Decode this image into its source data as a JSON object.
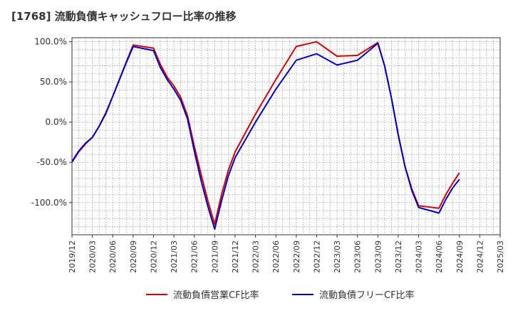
{
  "chart_data": {
    "type": "line",
    "title": "[1768]  流動負債キャッシュフロー比率の推移",
    "xlabel": "",
    "ylabel": "",
    "ylim": [
      -140,
      105
    ],
    "yticks": [
      {
        "value": 100,
        "label": "100.0%"
      },
      {
        "value": 50,
        "label": "50.0%"
      },
      {
        "value": 0,
        "label": "0.0%"
      },
      {
        "value": -50,
        "label": "-50.0%"
      },
      {
        "value": -100,
        "label": "-100.0%"
      }
    ],
    "xlim": [
      "2019/12",
      "2025/03"
    ],
    "x_tick_labels": [
      "2019/12",
      "2020/03",
      "2020/06",
      "2020/09",
      "2020/12",
      "2021/03",
      "2021/06",
      "2021/09",
      "2021/12",
      "2022/03",
      "2022/06",
      "2022/09",
      "2022/12",
      "2023/03",
      "2023/06",
      "2023/09",
      "2023/12",
      "2024/03",
      "2024/06",
      "2024/09",
      "2024/12",
      "2025/03"
    ],
    "grid": true,
    "legend_position": "bottom",
    "series": [
      {
        "name": "流動負債営業CF比率",
        "color": "#dd0000",
        "points": [
          {
            "x": "2019/12",
            "y": -50
          },
          {
            "x": "2020/01",
            "y": -37
          },
          {
            "x": "2020/02",
            "y": -27
          },
          {
            "x": "2020/03",
            "y": -19
          },
          {
            "x": "2020/04",
            "y": -5
          },
          {
            "x": "2020/05",
            "y": 12
          },
          {
            "x": "2020/06",
            "y": 32
          },
          {
            "x": "2020/08",
            "y": 75
          },
          {
            "x": "2020/09",
            "y": 96
          },
          {
            "x": "2020/12",
            "y": 92
          },
          {
            "x": "2021/01",
            "y": 72
          },
          {
            "x": "2021/02",
            "y": 56
          },
          {
            "x": "2021/03",
            "y": 45
          },
          {
            "x": "2021/04",
            "y": 31
          },
          {
            "x": "2021/05",
            "y": 8
          },
          {
            "x": "2021/06",
            "y": -30
          },
          {
            "x": "2021/07",
            "y": -65
          },
          {
            "x": "2021/08",
            "y": -98
          },
          {
            "x": "2021/09",
            "y": -127
          },
          {
            "x": "2021/10",
            "y": -90
          },
          {
            "x": "2021/11",
            "y": -60
          },
          {
            "x": "2021/12",
            "y": -37
          },
          {
            "x": "2022/03",
            "y": 10
          },
          {
            "x": "2022/06",
            "y": 53
          },
          {
            "x": "2022/09",
            "y": 94
          },
          {
            "x": "2022/12",
            "y": 100
          },
          {
            "x": "2023/03",
            "y": 82
          },
          {
            "x": "2023/06",
            "y": 83
          },
          {
            "x": "2023/09",
            "y": 99
          },
          {
            "x": "2023/10",
            "y": 70
          },
          {
            "x": "2023/11",
            "y": 30
          },
          {
            "x": "2023/12",
            "y": -15
          },
          {
            "x": "2024/01",
            "y": -55
          },
          {
            "x": "2024/02",
            "y": -83
          },
          {
            "x": "2024/03",
            "y": -104
          },
          {
            "x": "2024/06",
            "y": -107
          },
          {
            "x": "2024/07",
            "y": -90
          },
          {
            "x": "2024/08",
            "y": -76
          },
          {
            "x": "2024/09",
            "y": -63
          }
        ]
      },
      {
        "name": "流動負債フリーCF比率",
        "color": "#0000cc",
        "points": [
          {
            "x": "2019/12",
            "y": -49
          },
          {
            "x": "2020/01",
            "y": -36
          },
          {
            "x": "2020/02",
            "y": -26
          },
          {
            "x": "2020/03",
            "y": -19
          },
          {
            "x": "2020/04",
            "y": -5
          },
          {
            "x": "2020/05",
            "y": 11
          },
          {
            "x": "2020/06",
            "y": 32
          },
          {
            "x": "2020/08",
            "y": 74
          },
          {
            "x": "2020/09",
            "y": 94
          },
          {
            "x": "2020/12",
            "y": 89
          },
          {
            "x": "2021/01",
            "y": 68
          },
          {
            "x": "2021/02",
            "y": 53
          },
          {
            "x": "2021/03",
            "y": 41
          },
          {
            "x": "2021/04",
            "y": 27
          },
          {
            "x": "2021/05",
            "y": 4
          },
          {
            "x": "2021/06",
            "y": -36
          },
          {
            "x": "2021/07",
            "y": -73
          },
          {
            "x": "2021/08",
            "y": -105
          },
          {
            "x": "2021/09",
            "y": -133
          },
          {
            "x": "2021/10",
            "y": -98
          },
          {
            "x": "2021/11",
            "y": -67
          },
          {
            "x": "2021/12",
            "y": -44
          },
          {
            "x": "2022/03",
            "y": 0
          },
          {
            "x": "2022/06",
            "y": 41
          },
          {
            "x": "2022/09",
            "y": 77
          },
          {
            "x": "2022/12",
            "y": 85
          },
          {
            "x": "2023/03",
            "y": 71
          },
          {
            "x": "2023/06",
            "y": 77
          },
          {
            "x": "2023/09",
            "y": 98
          },
          {
            "x": "2023/10",
            "y": 70
          },
          {
            "x": "2023/11",
            "y": 30
          },
          {
            "x": "2023/12",
            "y": -16
          },
          {
            "x": "2024/01",
            "y": -55
          },
          {
            "x": "2024/02",
            "y": -85
          },
          {
            "x": "2024/03",
            "y": -106
          },
          {
            "x": "2024/06",
            "y": -113
          },
          {
            "x": "2024/07",
            "y": -96
          },
          {
            "x": "2024/08",
            "y": -82
          },
          {
            "x": "2024/09",
            "y": -71
          }
        ]
      }
    ]
  }
}
